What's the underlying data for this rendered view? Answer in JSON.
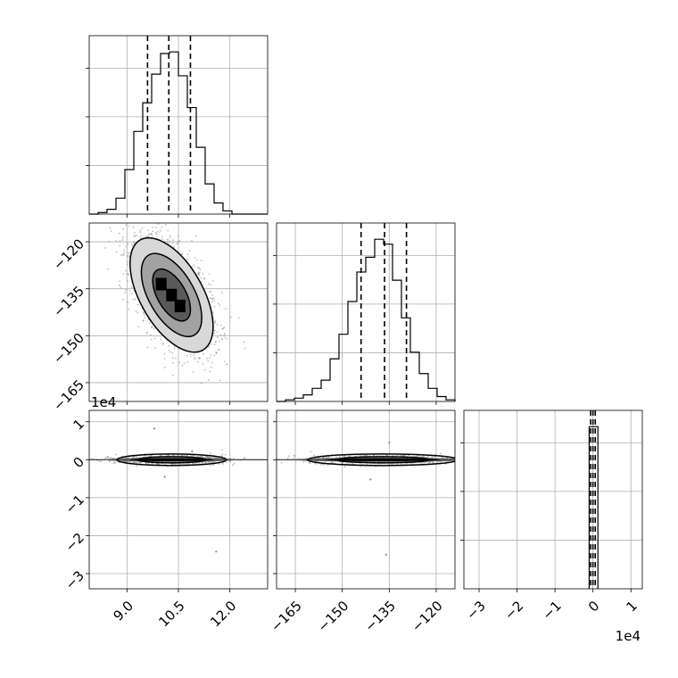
{
  "chart_data": {
    "type": "corner",
    "grid": true,
    "parameters": [
      {
        "range": [
          7.9,
          13.1
        ],
        "ticks": [
          9.0,
          10.5,
          12.0
        ],
        "tick_labels": [
          "9.0",
          "10.5",
          "12.0"
        ],
        "quantiles": [
          9.6,
          10.22,
          10.85
        ],
        "hist_edges": [
          7.9,
          8.16,
          8.42,
          8.68,
          8.94,
          9.2,
          9.46,
          9.72,
          9.98,
          10.24,
          10.5,
          10.76,
          11.02,
          11.28,
          11.54,
          11.8,
          12.06,
          12.32,
          12.58,
          12.84,
          13.1
        ],
        "hist_counts": [
          0,
          1,
          3,
          10,
          28,
          52,
          70,
          88,
          101,
          102,
          87,
          67,
          42,
          19,
          7,
          2,
          0,
          0,
          0,
          0
        ]
      },
      {
        "range": [
          -171,
          -114
        ],
        "ticks": [
          -165,
          -150,
          -135,
          -120
        ],
        "tick_labels": [
          "−165",
          "−150",
          "−135",
          "−120"
        ],
        "quantiles": [
          -144,
          -136.5,
          -129.5
        ],
        "hist_edges": [
          -171,
          -168.15,
          -165.3,
          -162.45,
          -159.6,
          -156.75,
          -153.9,
          -151.05,
          -148.2,
          -145.35,
          -142.5,
          -139.65,
          -136.8,
          -133.95,
          -131.1,
          -128.25,
          -125.4,
          -122.55,
          -119.7,
          -116.85,
          -114
        ],
        "hist_counts": [
          0,
          1,
          2,
          4,
          8,
          13,
          26,
          41,
          61,
          79,
          88,
          99,
          96,
          74,
          51,
          30,
          17,
          8,
          3,
          1
        ]
      },
      {
        "range": [
          -3.4,
          1.3
        ],
        "ticks": [
          -3,
          -2,
          -1,
          0,
          1
        ],
        "tick_labels": [
          "−3",
          "−2",
          "−1",
          "0",
          "1"
        ],
        "scale_label": "1e4",
        "quantiles": [
          -0.06,
          0.0,
          0.06
        ],
        "hist_edges": [
          -0.1,
          0.13
        ],
        "hist_counts": [
          100
        ]
      }
    ],
    "pairs": [
      {
        "x_param": 0,
        "y_param": 1,
        "center": [
          10.3,
          -137
        ],
        "sigma": [
          0.55,
          8.3
        ],
        "rho": -0.55,
        "levels": [
          1.0,
          1.6,
          2.2
        ]
      },
      {
        "x_param": 0,
        "y_param": 2,
        "center": [
          10.3,
          0.0
        ],
        "spread": [
          0.55,
          0.06
        ],
        "points": [
          [
            9.8,
            0.82
          ],
          [
            10.1,
            -0.45
          ],
          [
            11.6,
            -2.42
          ],
          [
            10.9,
            0.22
          ]
        ]
      },
      {
        "x_param": 1,
        "y_param": 2,
        "center": [
          -137,
          0.0
        ],
        "spread": [
          8.3,
          0.06
        ],
        "points": [
          [
            -141,
            -0.52
          ],
          [
            -136,
            -2.5
          ],
          [
            -135,
            0.45
          ]
        ]
      }
    ],
    "colors": {
      "line": "#000000",
      "scatter": "#8a8a8a",
      "fill_levels": [
        "#d8d8d8",
        "#a2a2a2",
        "#595959",
        "#000000"
      ]
    }
  }
}
